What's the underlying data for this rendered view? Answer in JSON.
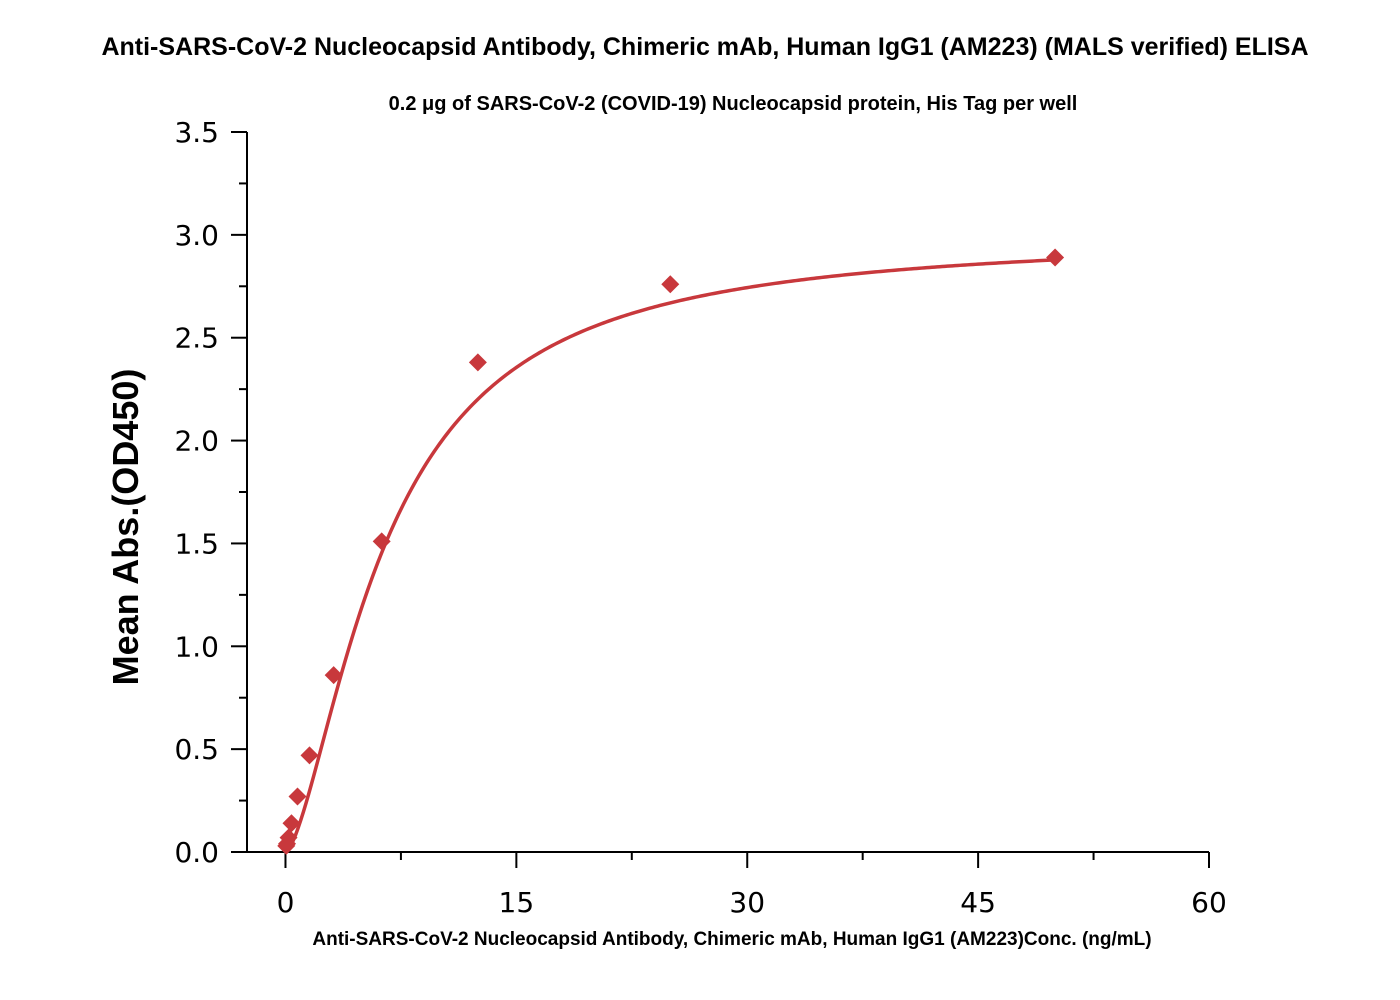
{
  "chart_data": {
    "type": "scatter",
    "title": "Anti-SARS-CoV-2 Nucleocapsid Antibody, Chimeric mAb, Human IgG1 (AM223) (MALS verified) ELISA",
    "subtitle": "0.2 μg of SARS-CoV-2 (COVID-19) Nucleocapsid protein, His Tag per well",
    "xlabel": "Anti-SARS-CoV-2 Nucleocapsid Antibody, Chimeric mAb, Human IgG1 (AM223)Conc. (ng/mL)",
    "ylabel": "Mean Abs.(OD450)",
    "xlim": [
      -2.5,
      60
    ],
    "ylim": [
      0,
      3.5
    ],
    "x_ticks": [
      "0",
      "15",
      "30",
      "45",
      "60"
    ],
    "y_ticks": [
      "0.0",
      "0.5",
      "1.0",
      "1.5",
      "2.0",
      "2.5",
      "3.0",
      "3.5"
    ],
    "grid": false,
    "legend": "none",
    "series": [
      {
        "marker": "diamond",
        "color": "#c8383c",
        "points": [
          {
            "x": 0.05,
            "y": 0.03
          },
          {
            "x": 0.1,
            "y": 0.04
          },
          {
            "x": 0.2,
            "y": 0.07
          },
          {
            "x": 0.39,
            "y": 0.14
          },
          {
            "x": 0.78,
            "y": 0.27
          },
          {
            "x": 1.56,
            "y": 0.47
          },
          {
            "x": 3.13,
            "y": 0.86
          },
          {
            "x": 6.25,
            "y": 1.51
          },
          {
            "x": 12.5,
            "y": 2.38
          },
          {
            "x": 25,
            "y": 2.76
          },
          {
            "x": 50,
            "y": 2.89
          }
        ]
      }
    ],
    "fit_curve": {
      "color": "#c8383c",
      "model": "4PL",
      "bottom": 0.0,
      "top": 3.0,
      "ec50": 6.5,
      "hill": 1.55,
      "x_range": [
        0,
        50
      ]
    }
  }
}
